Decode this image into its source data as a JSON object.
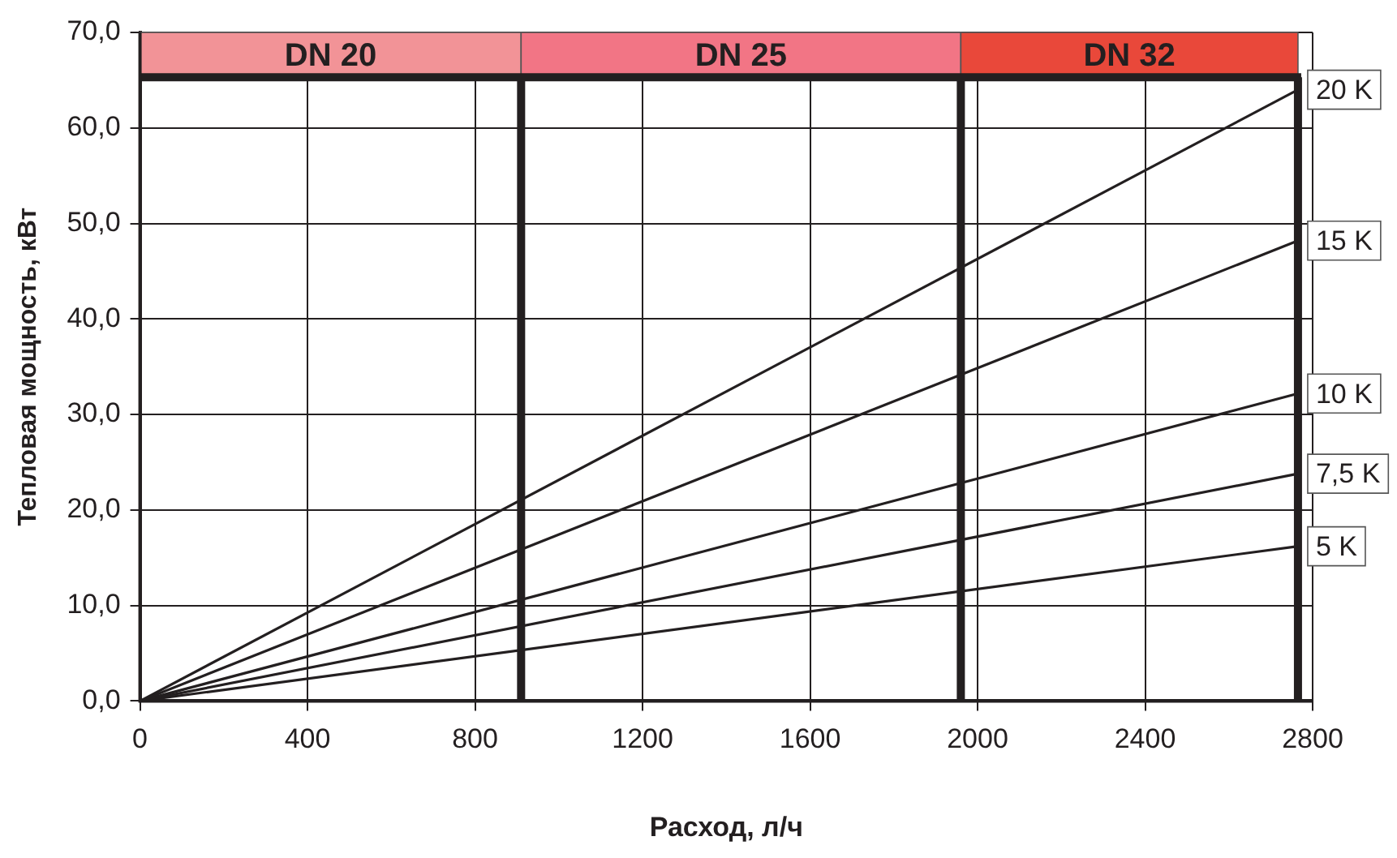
{
  "chart_data": {
    "type": "line",
    "xlabel": "Расход, л/ч",
    "ylabel": "Тепловая мощность, кВт",
    "x": [
      0,
      2765
    ],
    "series": [
      {
        "name": "20 K",
        "color": "#231f20",
        "values": [
          0,
          64.0
        ]
      },
      {
        "name": "15 K",
        "color": "#231f20",
        "values": [
          0,
          48.2
        ]
      },
      {
        "name": "10 K",
        "color": "#231f20",
        "values": [
          0,
          32.2
        ]
      },
      {
        "name": "7,5 K",
        "color": "#231f20",
        "values": [
          0,
          23.8
        ]
      },
      {
        "name": "5 K",
        "color": "#231f20",
        "values": [
          0,
          16.2
        ]
      }
    ],
    "xlim": [
      0,
      2800
    ],
    "xticks": [
      0,
      400,
      800,
      1200,
      1600,
      2000,
      2400,
      2800
    ],
    "ylim": [
      0,
      70
    ],
    "yticks": [
      {
        "value": 0,
        "label": "0,0"
      },
      {
        "value": 10,
        "label": "10,0"
      },
      {
        "value": 20,
        "label": "20,0"
      },
      {
        "value": 30,
        "label": "30,0"
      },
      {
        "value": 40,
        "label": "40,0"
      },
      {
        "value": 50,
        "label": "50,0"
      },
      {
        "value": 60,
        "label": "60,0"
      },
      {
        "value": 70,
        "label": "70,0"
      }
    ],
    "ref_lines": [
      {
        "axis": "x",
        "value": 910
      },
      {
        "axis": "x",
        "value": 1960
      },
      {
        "axis": "x",
        "value": 2765
      },
      {
        "axis": "y",
        "value": 65.3
      }
    ],
    "bands": [
      {
        "axis": "x",
        "from": 0,
        "to": 910,
        "label": "DN 20",
        "color": "#f29397"
      },
      {
        "axis": "x",
        "from": 910,
        "to": 1960,
        "label": "DN 25",
        "color": "#f27585"
      },
      {
        "axis": "x",
        "from": 1960,
        "to": 2765,
        "label": "DN 32",
        "color": "#e9483a"
      }
    ],
    "grid": true,
    "legend": false,
    "marker": "none",
    "line_style": "solid"
  }
}
